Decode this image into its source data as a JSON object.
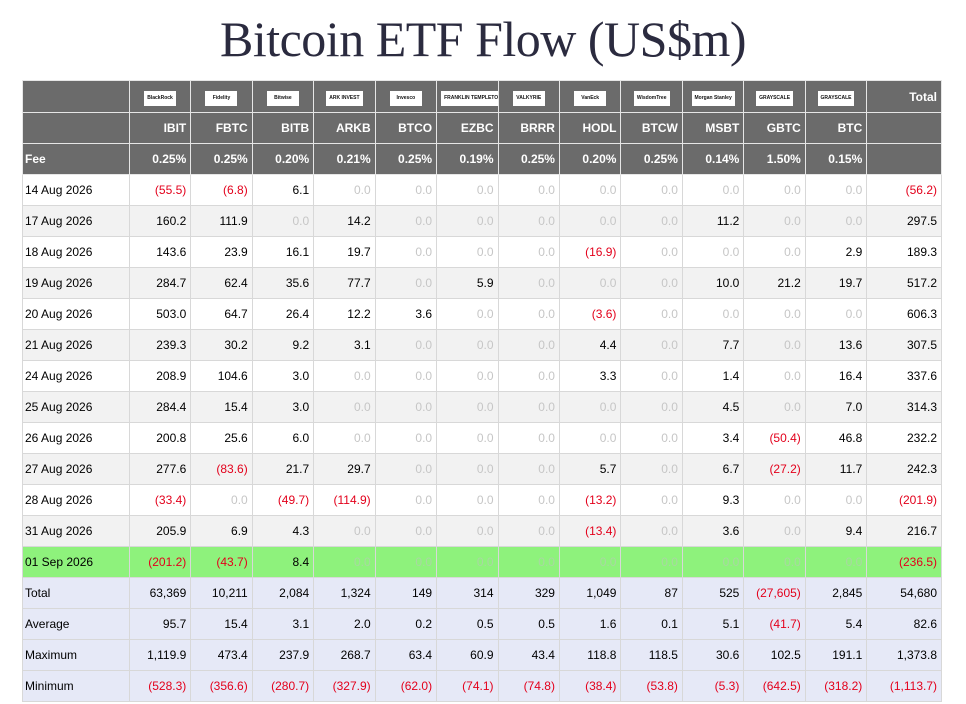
{
  "title": "Bitcoin ETF Flow (US$m)",
  "issuers": [
    "BlackRock",
    "Fidelity",
    "Bitwise",
    "ARK INVEST",
    "Invesco",
    "FRANKLIN TEMPLETON",
    "VALKYRIE",
    "VanEck",
    "WisdomTree",
    "Morgan Stanley",
    "GRAYSCALE",
    "GRAYSCALE"
  ],
  "total_label": "Total",
  "tickers": [
    "IBIT",
    "FBTC",
    "BITB",
    "ARKB",
    "BTCO",
    "EZBC",
    "BRRR",
    "HODL",
    "BTCW",
    "MSBT",
    "GBTC",
    "BTC"
  ],
  "fee_label": "Fee",
  "fees": [
    "0.25%",
    "0.25%",
    "0.20%",
    "0.21%",
    "0.25%",
    "0.19%",
    "0.25%",
    "0.20%",
    "0.25%",
    "0.14%",
    "1.50%",
    "0.15%"
  ],
  "rows": [
    {
      "date": "14 Aug 2026",
      "values": [
        "(55.5)",
        "(6.8)",
        "6.1",
        "0.0",
        "0.0",
        "0.0",
        "0.0",
        "0.0",
        "0.0",
        "0.0",
        "0.0",
        "0.0"
      ],
      "total": "(56.2)"
    },
    {
      "date": "17 Aug 2026",
      "values": [
        "160.2",
        "111.9",
        "0.0",
        "14.2",
        "0.0",
        "0.0",
        "0.0",
        "0.0",
        "0.0",
        "11.2",
        "0.0",
        "0.0"
      ],
      "total": "297.5"
    },
    {
      "date": "18 Aug 2026",
      "values": [
        "143.6",
        "23.9",
        "16.1",
        "19.7",
        "0.0",
        "0.0",
        "0.0",
        "(16.9)",
        "0.0",
        "0.0",
        "0.0",
        "2.9"
      ],
      "total": "189.3"
    },
    {
      "date": "19 Aug 2026",
      "values": [
        "284.7",
        "62.4",
        "35.6",
        "77.7",
        "0.0",
        "5.9",
        "0.0",
        "0.0",
        "0.0",
        "10.0",
        "21.2",
        "19.7"
      ],
      "total": "517.2"
    },
    {
      "date": "20 Aug 2026",
      "values": [
        "503.0",
        "64.7",
        "26.4",
        "12.2",
        "3.6",
        "0.0",
        "0.0",
        "(3.6)",
        "0.0",
        "0.0",
        "0.0",
        "0.0"
      ],
      "total": "606.3"
    },
    {
      "date": "21 Aug 2026",
      "values": [
        "239.3",
        "30.2",
        "9.2",
        "3.1",
        "0.0",
        "0.0",
        "0.0",
        "4.4",
        "0.0",
        "7.7",
        "0.0",
        "13.6"
      ],
      "total": "307.5"
    },
    {
      "date": "24 Aug 2026",
      "values": [
        "208.9",
        "104.6",
        "3.0",
        "0.0",
        "0.0",
        "0.0",
        "0.0",
        "3.3",
        "0.0",
        "1.4",
        "0.0",
        "16.4"
      ],
      "total": "337.6"
    },
    {
      "date": "25 Aug 2026",
      "values": [
        "284.4",
        "15.4",
        "3.0",
        "0.0",
        "0.0",
        "0.0",
        "0.0",
        "0.0",
        "0.0",
        "4.5",
        "0.0",
        "7.0"
      ],
      "total": "314.3"
    },
    {
      "date": "26 Aug 2026",
      "values": [
        "200.8",
        "25.6",
        "6.0",
        "0.0",
        "0.0",
        "0.0",
        "0.0",
        "0.0",
        "0.0",
        "3.4",
        "(50.4)",
        "46.8"
      ],
      "total": "232.2"
    },
    {
      "date": "27 Aug 2026",
      "values": [
        "277.6",
        "(83.6)",
        "21.7",
        "29.7",
        "0.0",
        "0.0",
        "0.0",
        "5.7",
        "0.0",
        "6.7",
        "(27.2)",
        "11.7"
      ],
      "total": "242.3"
    },
    {
      "date": "28 Aug 2026",
      "values": [
        "(33.4)",
        "0.0",
        "(49.7)",
        "(114.9)",
        "0.0",
        "0.0",
        "0.0",
        "(13.2)",
        "0.0",
        "9.3",
        "0.0",
        "0.0"
      ],
      "total": "(201.9)"
    },
    {
      "date": "31 Aug 2026",
      "values": [
        "205.9",
        "6.9",
        "4.3",
        "0.0",
        "0.0",
        "0.0",
        "0.0",
        "(13.4)",
        "0.0",
        "3.6",
        "0.0",
        "9.4"
      ],
      "total": "216.7"
    },
    {
      "date": "01 Sep 2026",
      "values": [
        "(201.2)",
        "(43.7)",
        "8.4",
        "0.0",
        "0.0",
        "0.0",
        "0.0",
        "0.0",
        "0.0",
        "0.0",
        "0.0",
        "0.0"
      ],
      "total": "(236.5)",
      "highlight": true
    }
  ],
  "summary": [
    {
      "label": "Total",
      "values": [
        "63,369",
        "10,211",
        "2,084",
        "1,324",
        "149",
        "314",
        "329",
        "1,049",
        "87",
        "525",
        "(27,605)",
        "2,845"
      ],
      "total": "54,680"
    },
    {
      "label": "Average",
      "values": [
        "95.7",
        "15.4",
        "3.1",
        "2.0",
        "0.2",
        "0.5",
        "0.5",
        "1.6",
        "0.1",
        "5.1",
        "(41.7)",
        "5.4"
      ],
      "total": "82.6"
    },
    {
      "label": "Maximum",
      "values": [
        "1,119.9",
        "473.4",
        "237.9",
        "268.7",
        "63.4",
        "60.9",
        "43.4",
        "118.8",
        "118.5",
        "30.6",
        "102.5",
        "191.1"
      ],
      "total": "1,373.8"
    },
    {
      "label": "Minimum",
      "values": [
        "(528.3)",
        "(356.6)",
        "(280.7)",
        "(327.9)",
        "(62.0)",
        "(74.1)",
        "(74.8)",
        "(38.4)",
        "(53.8)",
        "(5.3)",
        "(642.5)",
        "(318.2)"
      ],
      "total": "(1,113.7)"
    }
  ]
}
